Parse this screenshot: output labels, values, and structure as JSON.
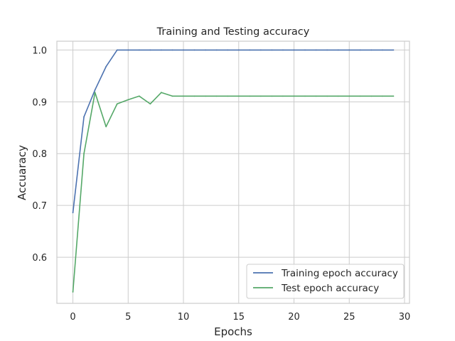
{
  "chart_data": {
    "type": "line",
    "title": "Training and Testing accuracy",
    "xlabel": "Epochs",
    "ylabel": "Accuaracy",
    "xlim": [
      -1.45,
      30.45
    ],
    "ylim": [
      0.511,
      1.017
    ],
    "xticks": [
      0,
      5,
      10,
      15,
      20,
      25,
      30
    ],
    "yticks": [
      0.6,
      0.7,
      0.8,
      0.9,
      1.0
    ],
    "xtick_labels": [
      "0",
      "5",
      "10",
      "15",
      "20",
      "25",
      "30"
    ],
    "ytick_labels": [
      "0.6",
      "0.7",
      "0.8",
      "0.9",
      "1.0"
    ],
    "grid": true,
    "legend_position": "lower-right",
    "x": [
      0,
      1,
      2,
      3,
      4,
      5,
      6,
      7,
      8,
      9,
      10,
      11,
      12,
      13,
      14,
      15,
      16,
      17,
      18,
      19,
      20,
      21,
      22,
      23,
      24,
      25,
      26,
      27,
      28,
      29
    ],
    "series": [
      {
        "name": "Training epoch accuracy",
        "color": "#4c72b0",
        "values": [
          0.686,
          0.871,
          0.923,
          0.968,
          1.0,
          1.0,
          1.0,
          1.0,
          1.0,
          1.0,
          1.0,
          1.0,
          1.0,
          1.0,
          1.0,
          1.0,
          1.0,
          1.0,
          1.0,
          1.0,
          1.0,
          1.0,
          1.0,
          1.0,
          1.0,
          1.0,
          1.0,
          1.0,
          1.0,
          1.0
        ]
      },
      {
        "name": "Test epoch accuracy",
        "color": "#55a868",
        "values": [
          0.533,
          0.8,
          0.918,
          0.852,
          0.896,
          0.904,
          0.911,
          0.896,
          0.918,
          0.911,
          0.911,
          0.911,
          0.911,
          0.911,
          0.911,
          0.911,
          0.911,
          0.911,
          0.911,
          0.911,
          0.911,
          0.911,
          0.911,
          0.911,
          0.911,
          0.911,
          0.911,
          0.911,
          0.911,
          0.911
        ]
      }
    ]
  }
}
